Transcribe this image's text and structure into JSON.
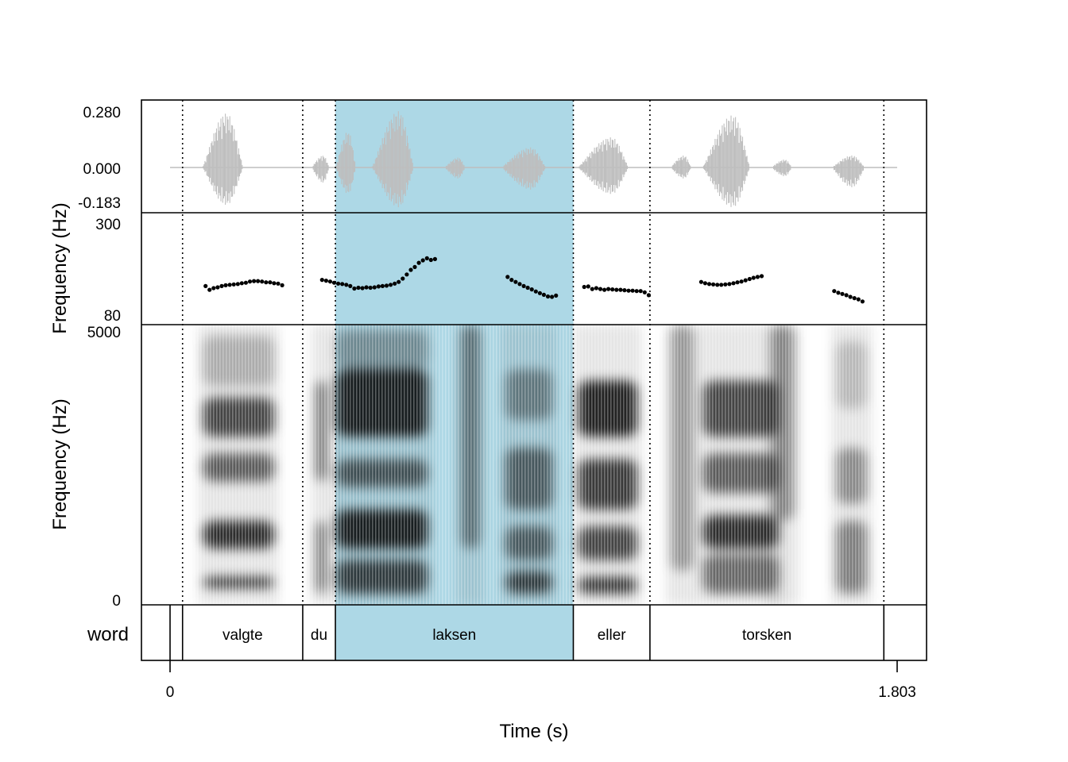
{
  "chart_data": {
    "type": "speech_annotation",
    "xlabel": "Time (s)",
    "x_ticks": [
      "0",
      "1.803"
    ],
    "xlim": [
      0,
      1.803
    ],
    "highlight_color": "#add8e6",
    "panels": {
      "waveform": {
        "y_ticks": [
          "0.280",
          "0.000",
          "-0.183"
        ],
        "ylim": [
          -0.183,
          0.28
        ],
        "color": "#bebebe"
      },
      "pitch": {
        "ylabel": "Frequency (Hz)",
        "y_ticks": [
          "300",
          "80"
        ],
        "ylim": [
          80,
          300
        ],
        "segments": [
          {
            "t": [
              0.088,
              0.098,
              0.108,
              0.118,
              0.128,
              0.138,
              0.148,
              0.158,
              0.168,
              0.178,
              0.188,
              0.198,
              0.208,
              0.218,
              0.228,
              0.238,
              0.248,
              0.258,
              0.268,
              0.278
            ],
            "f0": [
              150,
              141,
              145,
              147,
              150,
              152,
              153,
              154,
              155,
              157,
              158,
              161,
              162,
              162,
              161,
              159,
              159,
              157,
              156,
              152
            ]
          },
          {
            "t": [
              0.377,
              0.387,
              0.397,
              0.407,
              0.417,
              0.427,
              0.437,
              0.447,
              0.457,
              0.467,
              0.477,
              0.487,
              0.497,
              0.507,
              0.517,
              0.527,
              0.537,
              0.547,
              0.557,
              0.567,
              0.577,
              0.587,
              0.597,
              0.607,
              0.617,
              0.627,
              0.637,
              0.647,
              0.657
            ],
            "f0": [
              165,
              163,
              161,
              158,
              156,
              155,
              153,
              150,
              144,
              146,
              145,
              147,
              146,
              147,
              149,
              150,
              151,
              153,
              156,
              160,
              168,
              178,
              189,
              196,
              206,
              212,
              217,
              213,
              215
            ]
          },
          {
            "t": [
              0.837,
              0.847,
              0.857,
              0.867,
              0.877,
              0.887,
              0.897,
              0.907,
              0.917,
              0.927,
              0.937,
              0.947,
              0.957
            ],
            "f0": [
              172,
              165,
              160,
              155,
              150,
              146,
              142,
              137,
              133,
              129,
              125,
              124,
              127
            ]
          },
          {
            "t": [
              1.027,
              1.037,
              1.047,
              1.057,
              1.067,
              1.077,
              1.087,
              1.097,
              1.107,
              1.117,
              1.127,
              1.137,
              1.147,
              1.157,
              1.167,
              1.177,
              1.187
            ],
            "f0": [
              148,
              149,
              143,
              145,
              143,
              141,
              143,
              142,
              141,
              141,
              140,
              139,
              139,
              138,
              138,
              135,
              128
            ]
          },
          {
            "t": [
              1.317,
              1.327,
              1.337,
              1.347,
              1.357,
              1.367,
              1.377,
              1.387,
              1.397,
              1.407,
              1.417,
              1.427,
              1.437,
              1.447,
              1.457,
              1.467
            ],
            "f0": [
              160,
              157,
              155,
              154,
              153,
              153,
              154,
              155,
              157,
              159,
              161,
              164,
              167,
              170,
              172,
              174
            ]
          },
          {
            "t": [
              1.647,
              1.657,
              1.667,
              1.677,
              1.687,
              1.697,
              1.707,
              1.717
            ],
            "f0": [
              138,
              134,
              131,
              128,
              124,
              121,
              118,
              113
            ]
          }
        ]
      },
      "spectrogram": {
        "ylabel": "Frequency (Hz)",
        "y_ticks": [
          "5000",
          "0"
        ],
        "ylim": [
          0,
          5000
        ]
      },
      "tier": {
        "name": "word",
        "boundaries": [
          0.0,
          0.031,
          0.329,
          0.41,
          1.0,
          1.19,
          1.77
        ],
        "intervals": [
          {
            "label": "",
            "start": 0.0,
            "end": 0.031
          },
          {
            "label": "valgte",
            "start": 0.031,
            "end": 0.329
          },
          {
            "label": "du",
            "start": 0.329,
            "end": 0.41
          },
          {
            "label": "laksen",
            "start": 0.41,
            "end": 1.0,
            "highlighted": true
          },
          {
            "label": "eller",
            "start": 1.0,
            "end": 1.19
          },
          {
            "label": "torsken",
            "start": 1.19,
            "end": 1.77
          },
          {
            "label": "",
            "start": 1.77,
            "end": 1.803
          }
        ]
      }
    }
  }
}
